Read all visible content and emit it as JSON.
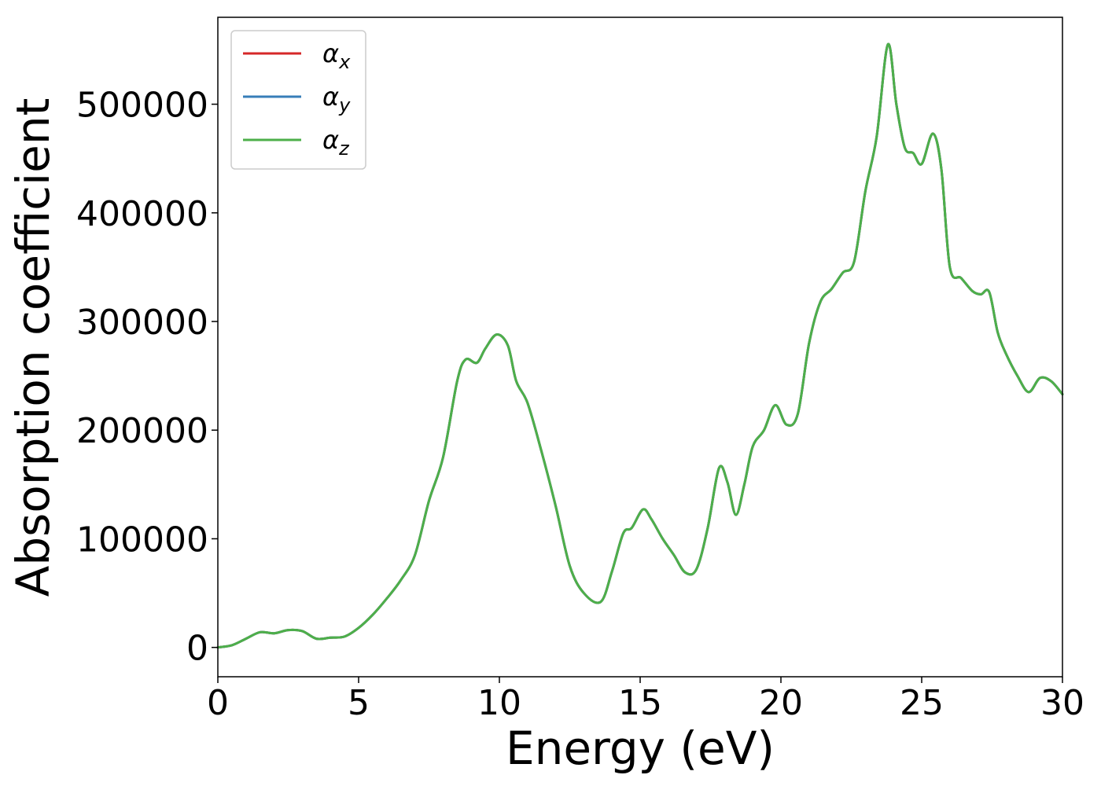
{
  "chart_data": {
    "type": "line",
    "title": "",
    "xlabel": "Energy (eV)",
    "ylabel": "Absorption coefficient",
    "xlim": [
      0,
      30
    ],
    "ylim": [
      -27000,
      580000
    ],
    "xticks": [
      0,
      5,
      10,
      15,
      20,
      25,
      30
    ],
    "xtick_labels": [
      "0",
      "5",
      "10",
      "15",
      "20",
      "25",
      "30"
    ],
    "yticks": [
      0,
      100000,
      200000,
      300000,
      400000,
      500000
    ],
    "ytick_labels": [
      "0",
      "100000",
      "200000",
      "300000",
      "400000",
      "500000"
    ],
    "grid": false,
    "legend_position": "top-left",
    "series": [
      {
        "name": "α",
        "subscript": "x",
        "color": "#d62728",
        "x": [
          0,
          0.5,
          1.0,
          1.5,
          2.0,
          2.5,
          3.0,
          3.5,
          4.0,
          4.5,
          5.0,
          5.5,
          6.0,
          6.5,
          7.0,
          7.5,
          8.0,
          8.5,
          8.8,
          9.2,
          9.5,
          9.9,
          10.3,
          10.6,
          11.0,
          11.5,
          12.0,
          12.5,
          13.0,
          13.6,
          14.0,
          14.4,
          14.7,
          15.1,
          15.4,
          15.8,
          16.2,
          16.6,
          17.0,
          17.4,
          17.8,
          18.1,
          18.4,
          18.7,
          19.0,
          19.4,
          19.8,
          20.2,
          20.6,
          21.0,
          21.4,
          21.8,
          22.2,
          22.6,
          23.0,
          23.4,
          23.8,
          24.1,
          24.4,
          24.7,
          25.0,
          25.4,
          25.7,
          26.0,
          26.4,
          26.8,
          27.1,
          27.4,
          27.7,
          28.0,
          28.4,
          28.8,
          29.2,
          29.6,
          30.0
        ],
        "values": [
          0,
          2000,
          8000,
          14000,
          13000,
          16000,
          15000,
          8000,
          9000,
          10000,
          18000,
          30000,
          45000,
          62000,
          85000,
          135000,
          175000,
          245000,
          265000,
          262000,
          275000,
          288000,
          278000,
          245000,
          225000,
          180000,
          130000,
          75000,
          50000,
          42000,
          70000,
          105000,
          110000,
          127000,
          118000,
          100000,
          85000,
          69000,
          72000,
          110000,
          165000,
          152000,
          122000,
          150000,
          185000,
          200000,
          223000,
          205000,
          215000,
          280000,
          318000,
          330000,
          345000,
          355000,
          420000,
          470000,
          555000,
          500000,
          460000,
          455000,
          445000,
          473000,
          440000,
          350000,
          340000,
          328000,
          325000,
          327000,
          290000,
          270000,
          250000,
          235000,
          248000,
          245000,
          233000
        ]
      },
      {
        "name": "α",
        "subscript": "y",
        "color": "#377eb8",
        "x": [
          0,
          0.5,
          1.0,
          1.5,
          2.0,
          2.5,
          3.0,
          3.5,
          4.0,
          4.5,
          5.0,
          5.5,
          6.0,
          6.5,
          7.0,
          7.5,
          8.0,
          8.5,
          8.8,
          9.2,
          9.5,
          9.9,
          10.3,
          10.6,
          11.0,
          11.5,
          12.0,
          12.5,
          13.0,
          13.6,
          14.0,
          14.4,
          14.7,
          15.1,
          15.4,
          15.8,
          16.2,
          16.6,
          17.0,
          17.4,
          17.8,
          18.1,
          18.4,
          18.7,
          19.0,
          19.4,
          19.8,
          20.2,
          20.6,
          21.0,
          21.4,
          21.8,
          22.2,
          22.6,
          23.0,
          23.4,
          23.8,
          24.1,
          24.4,
          24.7,
          25.0,
          25.4,
          25.7,
          26.0,
          26.4,
          26.8,
          27.1,
          27.4,
          27.7,
          28.0,
          28.4,
          28.8,
          29.2,
          29.6,
          30.0
        ],
        "values": [
          0,
          2000,
          8000,
          14000,
          13000,
          16000,
          15000,
          8000,
          9000,
          10000,
          18000,
          30000,
          45000,
          62000,
          85000,
          135000,
          175000,
          245000,
          265000,
          262000,
          275000,
          288000,
          278000,
          245000,
          225000,
          180000,
          130000,
          75000,
          50000,
          42000,
          70000,
          105000,
          110000,
          127000,
          118000,
          100000,
          85000,
          69000,
          72000,
          110000,
          165000,
          152000,
          122000,
          150000,
          185000,
          200000,
          223000,
          205000,
          215000,
          280000,
          318000,
          330000,
          345000,
          355000,
          420000,
          470000,
          555000,
          500000,
          460000,
          455000,
          445000,
          473000,
          440000,
          350000,
          340000,
          328000,
          325000,
          327000,
          290000,
          270000,
          250000,
          235000,
          248000,
          245000,
          233000
        ]
      },
      {
        "name": "α",
        "subscript": "z",
        "color": "#4daf4a",
        "x": [
          0,
          0.5,
          1.0,
          1.5,
          2.0,
          2.5,
          3.0,
          3.5,
          4.0,
          4.5,
          5.0,
          5.5,
          6.0,
          6.5,
          7.0,
          7.5,
          8.0,
          8.5,
          8.8,
          9.2,
          9.5,
          9.9,
          10.3,
          10.6,
          11.0,
          11.5,
          12.0,
          12.5,
          13.0,
          13.6,
          14.0,
          14.4,
          14.7,
          15.1,
          15.4,
          15.8,
          16.2,
          16.6,
          17.0,
          17.4,
          17.8,
          18.1,
          18.4,
          18.7,
          19.0,
          19.4,
          19.8,
          20.2,
          20.6,
          21.0,
          21.4,
          21.8,
          22.2,
          22.6,
          23.0,
          23.4,
          23.8,
          24.1,
          24.4,
          24.7,
          25.0,
          25.4,
          25.7,
          26.0,
          26.4,
          26.8,
          27.1,
          27.4,
          27.7,
          28.0,
          28.4,
          28.8,
          29.2,
          29.6,
          30.0
        ],
        "values": [
          0,
          2000,
          8000,
          14000,
          13000,
          16000,
          15000,
          8000,
          9000,
          10000,
          18000,
          30000,
          45000,
          62000,
          85000,
          135000,
          175000,
          245000,
          265000,
          262000,
          275000,
          288000,
          278000,
          245000,
          225000,
          180000,
          130000,
          75000,
          50000,
          42000,
          70000,
          105000,
          110000,
          127000,
          118000,
          100000,
          85000,
          69000,
          72000,
          110000,
          165000,
          152000,
          122000,
          150000,
          185000,
          200000,
          223000,
          205000,
          215000,
          280000,
          318000,
          330000,
          345000,
          355000,
          420000,
          470000,
          555000,
          500000,
          460000,
          455000,
          445000,
          473000,
          440000,
          350000,
          340000,
          328000,
          325000,
          327000,
          290000,
          270000,
          250000,
          235000,
          248000,
          245000,
          233000
        ]
      }
    ]
  }
}
